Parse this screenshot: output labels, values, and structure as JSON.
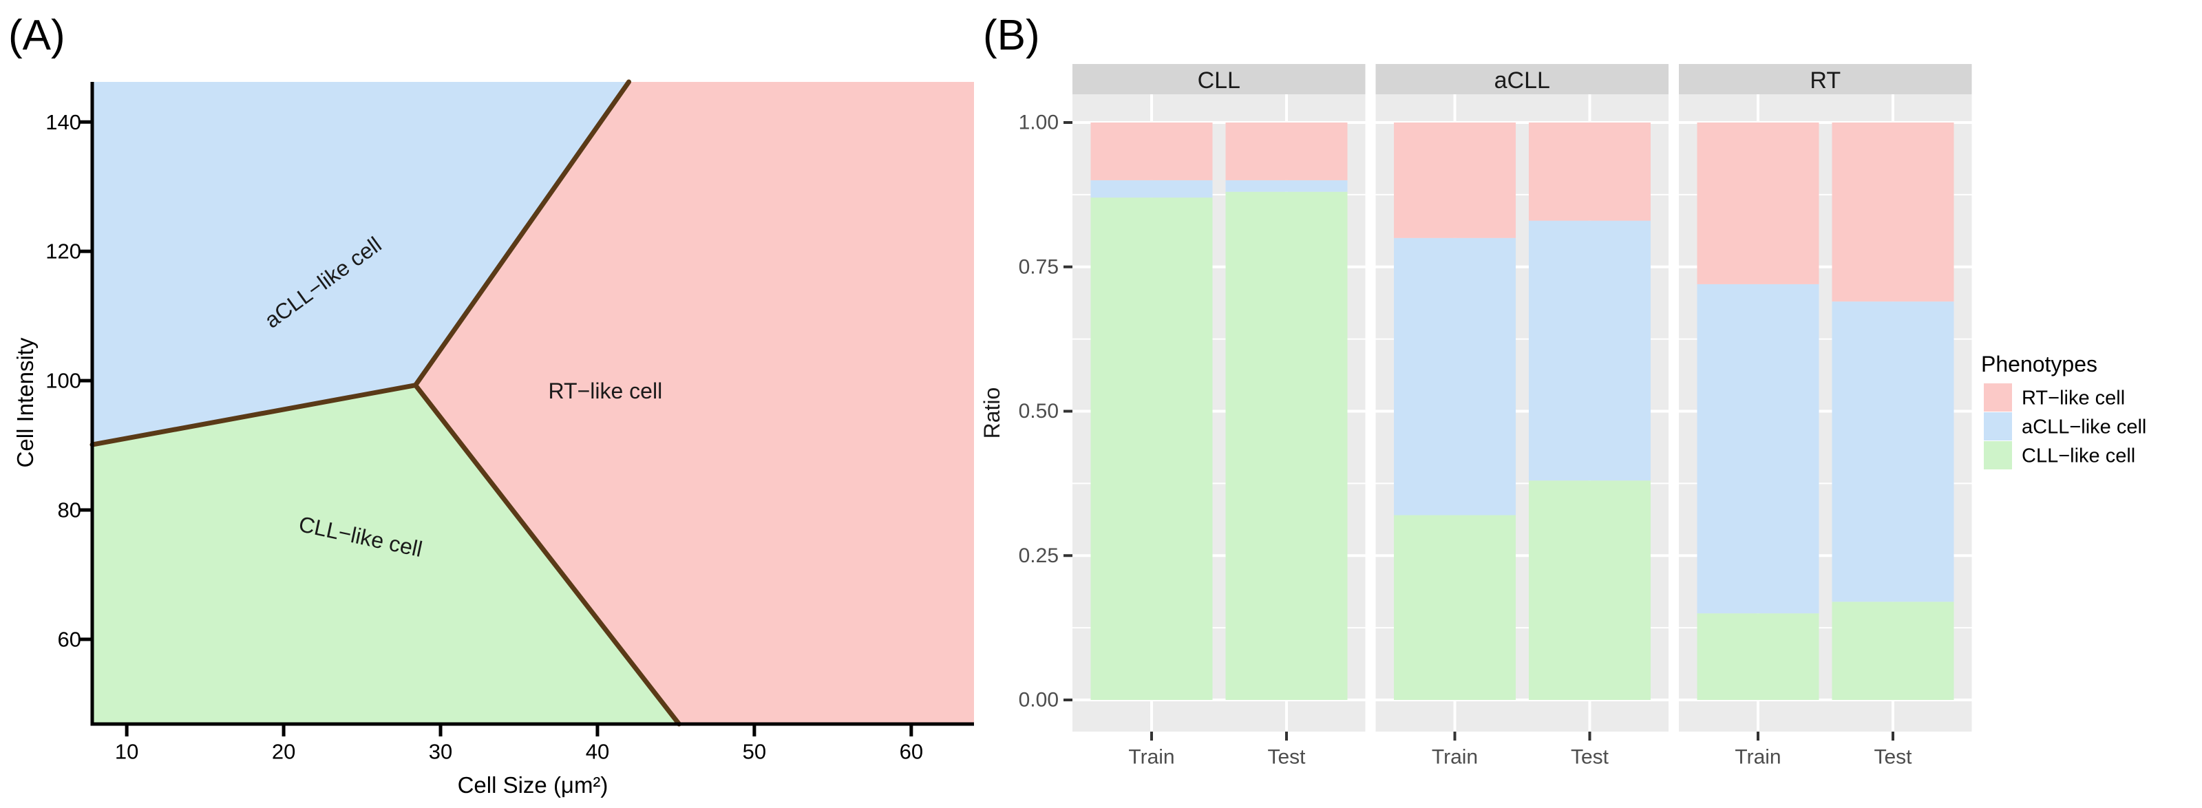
{
  "figure": {
    "panel_a_tag": "(A)",
    "panel_b_tag": "(B)"
  },
  "colors": {
    "pink": "#FBC9C7",
    "blue": "#C9E1F8",
    "green": "#CEF3C9",
    "boundary": "#5A3A17",
    "strip_bg": "#D5D5D5",
    "panel_bg": "#EBEBEB",
    "grid": "#FFFFFF",
    "axis_text_gray": "#4D4D4D",
    "text_black": "#1A1A1A"
  },
  "chart_data": [
    {
      "id": "decision-boundary-map",
      "type": "area",
      "xlabel": "Cell Size (μm²)",
      "ylabel": "Cell Intensity",
      "xlim": [
        7.8,
        64.0
      ],
      "ylim": [
        46.9,
        146.2
      ],
      "xticks": [
        10,
        20,
        30,
        40,
        50,
        60
      ],
      "yticks": [
        60,
        80,
        100,
        120,
        140
      ],
      "vertex": {
        "x": 28.4,
        "y": 99.3
      },
      "boundary_endpoints": {
        "top": {
          "x": 42.0,
          "y": 146.2
        },
        "bottom": {
          "x": 45.2,
          "y": 46.9
        },
        "left": {
          "x": 7.8,
          "y": 90.1
        }
      },
      "regions": [
        {
          "name": "acll-region",
          "color_key": "blue",
          "label": "aCLL−like cell",
          "label_at": {
            "x": 22.5,
            "y": 115.2
          },
          "label_rotation_deg": -36
        },
        {
          "name": "rt-region",
          "color_key": "pink",
          "label": "RT−like cell",
          "label_at": {
            "x": 40.5,
            "y": 98.4
          },
          "label_rotation_deg": 0
        },
        {
          "name": "cll-region",
          "color_key": "green",
          "label": "CLL−like cell",
          "label_at": {
            "x": 24.9,
            "y": 75.9
          },
          "label_rotation_deg": 12
        }
      ]
    },
    {
      "id": "phenotype-ratio-bars",
      "type": "bar",
      "stacked": true,
      "facets": [
        "CLL",
        "aCLL",
        "RT"
      ],
      "categories": [
        "Train",
        "Test"
      ],
      "ylabel": "Ratio",
      "ylim": [
        0,
        1
      ],
      "yticks": [
        0.0,
        0.25,
        0.5,
        0.75,
        1.0
      ],
      "ytick_labels": [
        "0.00",
        "0.25",
        "0.50",
        "0.75",
        "1.00"
      ],
      "minor_gridlines": [
        0.125,
        0.375,
        0.625,
        0.875
      ],
      "legend_title": "Phenotypes",
      "legend": [
        {
          "label": "RT−like cell",
          "color_key": "pink"
        },
        {
          "label": "aCLL−like cell",
          "color_key": "blue"
        },
        {
          "label": "CLL−like cell",
          "color_key": "green"
        }
      ],
      "series_keys_bottom_to_top": [
        "CLL",
        "aCLL",
        "RT"
      ],
      "series_colors": {
        "CLL": "green",
        "aCLL": "blue",
        "RT": "pink"
      },
      "values": {
        "CLL": {
          "Train": {
            "CLL": 0.87,
            "aCLL": 0.03,
            "RT": 0.1
          },
          "Test": {
            "CLL": 0.88,
            "aCLL": 0.02,
            "RT": 0.1
          }
        },
        "aCLL": {
          "Train": {
            "CLL": 0.32,
            "aCLL": 0.48,
            "RT": 0.2
          },
          "Test": {
            "CLL": 0.38,
            "aCLL": 0.45,
            "RT": 0.17
          }
        },
        "RT": {
          "Train": {
            "CLL": 0.15,
            "aCLL": 0.57,
            "RT": 0.28
          },
          "Test": {
            "CLL": 0.17,
            "aCLL": 0.52,
            "RT": 0.31
          }
        }
      }
    }
  ]
}
